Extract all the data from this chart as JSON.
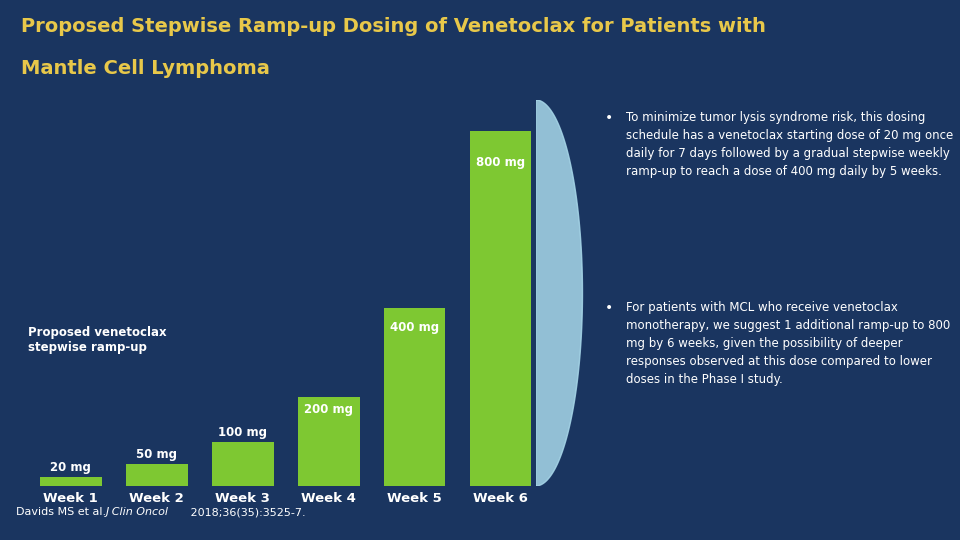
{
  "title_line1": "Proposed Stepwise Ramp-up Dosing of Venetoclax for Patients with",
  "title_line2": "Mantle Cell Lymphoma",
  "title_color": "#e8c84a",
  "background_color": "#1a3560",
  "bar_color": "#7ec832",
  "bar_weeks": [
    "Week 1",
    "Week 2",
    "Week 3",
    "Week 4",
    "Week 5",
    "Week 6"
  ],
  "bar_doses": [
    20,
    50,
    100,
    200,
    400,
    800
  ],
  "bar_labels": [
    "20 mg",
    "50 mg",
    "100 mg",
    "200 mg",
    "400 mg",
    "800 mg"
  ],
  "chart_label_line1": "Proposed venetoclax",
  "chart_label_line2": "stepwise ramp-up",
  "bullet1": "To minimize tumor lysis syndrome risk, this dosing schedule has a venetoclax starting dose of 20 mg once daily for 7 days followed by a gradual stepwise weekly ramp-up to reach a dose of 400 mg daily by 5 weeks.",
  "bullet2": "For patients with MCL who receive venetoclax monotherapy, we suggest 1 additional ramp-up to 800 mg by 6 weeks, given the possibility of deeper responses observed at this dose compared to lower doses in the Phase I study.",
  "footnote_normal": "Davids MS et al. ",
  "footnote_italic": "J Clin Oncol",
  "footnote_normal2": " 2018;36(35):3525-7.",
  "text_color": "#ffffff",
  "separator_color": "#3a9ad9",
  "curve_color": "#a8d8ea"
}
